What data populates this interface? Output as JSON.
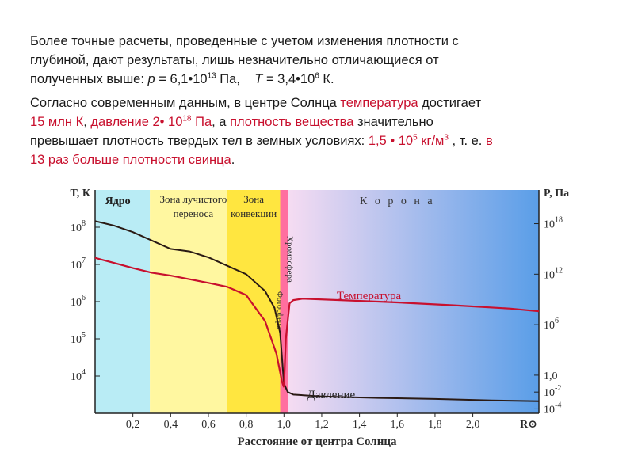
{
  "paragraph1": {
    "line1": "Более точные расчеты, проведенные с учетом изменения плотности с",
    "line2": "глубиной, дают результаты, лишь незначительно отличающиеся от",
    "line3_a": "полученных выше: ",
    "p_var": "p",
    "p_eq": " = 6,1•10",
    "p_exp": "13",
    "p_unit": " Па,",
    "t_var": "T",
    "t_eq": " = 3,4•10",
    "t_exp": "6",
    "t_unit": " К."
  },
  "paragraph2": {
    "l1_a": "Согласно современным данным, в центре Солнца ",
    "l1_red": "температура",
    "l1_b": " достигает",
    "l2_red_a": "15 млн К",
    "l2_a": ", ",
    "l2_red_b": "давление 2• 10",
    "l2_red_exp": "18",
    "l2_red_c": " Па",
    "l2_b": ", а ",
    "l2_red_d": "плотность вещества",
    "l2_c": " значительно",
    "l3_a": "превышает плотность твердых тел в земных условиях: ",
    "l3_red_a": "1,5 • 10",
    "l3_red_exp": "5",
    "l3_red_b": " кг/м",
    "l3_red_exp2": "3",
    "l3_b": " , т. е. ",
    "l3_red_c": "в",
    "l4_red": "13 раз больше плотности свинца",
    "l4_end": "."
  },
  "colors": {
    "core": "#b9ecf5",
    "radiative": "#fff7a0",
    "convective": "#ffe640",
    "photosphere": "#ff6f9f",
    "corona_start": "#f6dcf2",
    "corona_end": "#5a9ee8",
    "temp_curve": "#c8102e",
    "pressure_curve": "#2a1a14",
    "red_text": "#c8102e"
  },
  "chart_data": {
    "type": "line",
    "xlabel": "Расстояние от центра Солнца",
    "x_unit": "R⊙",
    "left_axis_title": "T, К",
    "right_axis_title": "P, Па",
    "xlim": [
      0,
      2.35
    ],
    "x_ticks": [
      {
        "value": 0.2,
        "label": "0,2"
      },
      {
        "value": 0.4,
        "label": "0,4"
      },
      {
        "value": 0.6,
        "label": "0,6"
      },
      {
        "value": 0.8,
        "label": "0,8"
      },
      {
        "value": 1.0,
        "label": "1,0"
      },
      {
        "value": 1.2,
        "label": "1,2"
      },
      {
        "value": 1.4,
        "label": "1,4"
      },
      {
        "value": 1.6,
        "label": "1,6"
      },
      {
        "value": 1.8,
        "label": "1,8"
      },
      {
        "value": 2.0,
        "label": "2,0"
      }
    ],
    "left_scale": "log",
    "left_ylim": [
      1000,
      1000000000
    ],
    "left_ticks": [
      {
        "value": 100000000,
        "label": "10",
        "exp": "8"
      },
      {
        "value": 10000000,
        "label": "10",
        "exp": "7"
      },
      {
        "value": 1000000,
        "label": "10",
        "exp": "6"
      },
      {
        "value": 100000,
        "label": "10",
        "exp": "5"
      },
      {
        "value": 10000,
        "label": "10",
        "exp": "4"
      }
    ],
    "right_scale": "log",
    "right_ylim": [
      3e-05,
      1e+22
    ],
    "right_ticks": [
      {
        "value": 1e+18,
        "label": "10",
        "exp": "18"
      },
      {
        "value": 1000000000000.0,
        "label": "10",
        "exp": "12"
      },
      {
        "value": 1000000,
        "label": "10",
        "exp": "6"
      },
      {
        "value": 1,
        "label": "1,0",
        "exp": ""
      },
      {
        "value": 0.01,
        "label": "10",
        "exp": "-2"
      },
      {
        "value": 0.0001,
        "label": "10",
        "exp": "-4"
      }
    ],
    "regions": [
      {
        "name": "Ядро",
        "x0": 0,
        "x1": 0.29
      },
      {
        "name": "Зона лучистого переноса",
        "x0": 0.29,
        "x1": 0.7
      },
      {
        "name": "Зона конвекции",
        "x0": 0.7,
        "x1": 0.98
      },
      {
        "name": "Хромосфера",
        "x0": 0.98,
        "x1": 1.02
      },
      {
        "name": "Корона",
        "x0": 1.02,
        "x1": 2.35
      }
    ],
    "region_labels": {
      "core": "Ядро",
      "radiative_1": "Зона лучистого",
      "radiative_2": "переноса",
      "convective_1": "Зона",
      "convective_2": "конвекции",
      "chromosphere": "Хромосфера",
      "photosphere": "Фотосфера",
      "corona": "К о р о н а"
    },
    "series": [
      {
        "name": "Температура",
        "axis": "left",
        "x": [
          0,
          0.1,
          0.2,
          0.3,
          0.4,
          0.5,
          0.6,
          0.7,
          0.8,
          0.9,
          0.96,
          0.99,
          1.0,
          1.01,
          1.03,
          1.05,
          1.1,
          1.3,
          1.6,
          1.9,
          2.2,
          2.35
        ],
        "y": [
          15000000,
          11000000,
          8000000,
          6000000,
          5000000,
          4000000,
          3200000,
          2500000,
          1500000,
          300000,
          40000,
          7000,
          5000,
          100000,
          900000,
          1100000,
          1200000,
          1100000,
          950000,
          800000,
          650000,
          550000
        ]
      },
      {
        "name": "Давление",
        "axis": "right",
        "x": [
          0,
          0.1,
          0.2,
          0.3,
          0.4,
          0.5,
          0.6,
          0.7,
          0.8,
          0.9,
          0.95,
          0.98,
          0.99,
          1.0,
          1.02,
          1.05,
          1.2,
          1.5,
          1.8,
          2.1,
          2.35
        ],
        "y": [
          2e+18,
          6e+17,
          1e+17,
          1e+16,
          1000000000000000.0,
          500000000000000.0,
          100000000000000.0,
          10000000000000.0,
          1000000000000.0,
          10000000000.0,
          100000000.0,
          100000,
          100,
          0.1,
          0.01,
          0.005,
          0.003,
          0.002,
          0.0015,
          0.001,
          0.0008
        ]
      }
    ],
    "series_labels": {
      "temperature": "Температура",
      "pressure": "Давление"
    }
  }
}
